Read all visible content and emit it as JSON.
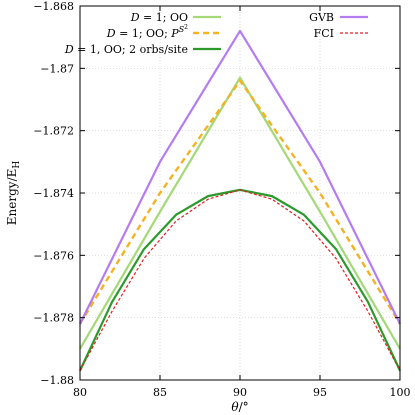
{
  "chart_data": {
    "type": "line",
    "xlabel": "θ/°",
    "ylabel": "Energy/E_H",
    "xlim": [
      80,
      100
    ],
    "ylim": [
      -1.88,
      -1.868
    ],
    "xticks": [
      80,
      85,
      90,
      95,
      100
    ],
    "xtick_labels": [
      "80",
      "85",
      "90",
      "95",
      "100"
    ],
    "yticks": [
      -1.88,
      -1.878,
      -1.876,
      -1.874,
      -1.872,
      -1.87,
      -1.868
    ],
    "ytick_labels": [
      "−1.88",
      "−1.878",
      "−1.876",
      "−1.874",
      "−1.872",
      "−1.87",
      "−1.868"
    ],
    "grid": true,
    "legend_columns": [
      {
        "placement": "top-left"
      },
      {
        "placement": "top-right"
      }
    ],
    "series": [
      {
        "name": "D = 1; OO",
        "legend_col": 0,
        "color": "#a3d977",
        "dash": "solid",
        "x": [
          80,
          85,
          90,
          95,
          100
        ],
        "y": [
          -1.879,
          -1.8746,
          -1.8703,
          -1.8746,
          -1.879
        ]
      },
      {
        "name": "D = 1; OO; P^{S^2}",
        "legend_col": 0,
        "color": "#f5b323",
        "dash": "dashed",
        "x": [
          80,
          85,
          90,
          95,
          100
        ],
        "y": [
          -1.8782,
          -1.874,
          -1.8704,
          -1.874,
          -1.8782
        ]
      },
      {
        "name": "D = 1, OO; 2 orbs/site",
        "legend_col": 0,
        "color": "#2b9a2b",
        "dash": "solid",
        "x": [
          80,
          82,
          84,
          86,
          88,
          90,
          92,
          94,
          96,
          98,
          100
        ],
        "y": [
          -1.8797,
          -1.8775,
          -1.8758,
          -1.8747,
          -1.8741,
          -1.8739,
          -1.8741,
          -1.8747,
          -1.8758,
          -1.8775,
          -1.8797
        ]
      },
      {
        "name": "GVB",
        "legend_col": 1,
        "color": "#b57cf2",
        "dash": "solid",
        "x": [
          80,
          85,
          90,
          95,
          100
        ],
        "y": [
          -1.8782,
          -1.873,
          -1.8688,
          -1.873,
          -1.8782
        ]
      },
      {
        "name": "FCI",
        "legend_col": 1,
        "color": "#e02020",
        "dash": "dotted",
        "x": [
          80,
          82,
          84,
          86,
          88,
          90,
          92,
          94,
          96,
          98,
          100
        ],
        "y": [
          -1.8797,
          -1.8778,
          -1.8761,
          -1.8749,
          -1.8742,
          -1.8739,
          -1.8742,
          -1.8749,
          -1.8761,
          -1.8778,
          -1.8797
        ]
      }
    ]
  }
}
